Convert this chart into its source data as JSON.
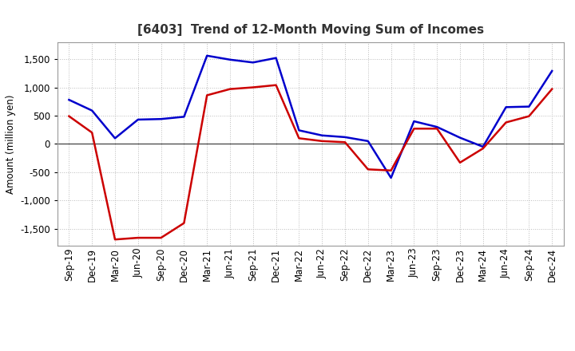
{
  "title": "[6403]  Trend of 12-Month Moving Sum of Incomes",
  "ylabel": "Amount (million yen)",
  "x_labels": [
    "Sep-19",
    "Dec-19",
    "Mar-20",
    "Jun-20",
    "Sep-20",
    "Dec-20",
    "Mar-21",
    "Jun-21",
    "Sep-21",
    "Dec-21",
    "Mar-22",
    "Jun-22",
    "Sep-22",
    "Dec-22",
    "Mar-23",
    "Jun-23",
    "Sep-23",
    "Dec-23",
    "Mar-24",
    "Jun-24",
    "Sep-24",
    "Dec-24"
  ],
  "ordinary_income": [
    780,
    590,
    100,
    430,
    440,
    480,
    1560,
    1490,
    1440,
    1520,
    240,
    150,
    120,
    50,
    -600,
    400,
    300,
    110,
    -50,
    650,
    660,
    1290
  ],
  "net_income": [
    490,
    200,
    -1690,
    -1660,
    -1660,
    -1400,
    860,
    970,
    1000,
    1040,
    100,
    50,
    30,
    -450,
    -470,
    270,
    270,
    -330,
    -80,
    380,
    490,
    970
  ],
  "ordinary_income_color": "#0000cc",
  "net_income_color": "#cc0000",
  "ylim": [
    -1800,
    1800
  ],
  "yticks": [
    -1500,
    -1000,
    -500,
    0,
    500,
    1000,
    1500
  ],
  "background_color": "#ffffff",
  "grid_color": "#bbbbbb",
  "line_width": 1.8,
  "title_color": "#333333",
  "title_fontsize": 11,
  "ylabel_fontsize": 8.5,
  "tick_fontsize": 8.5
}
